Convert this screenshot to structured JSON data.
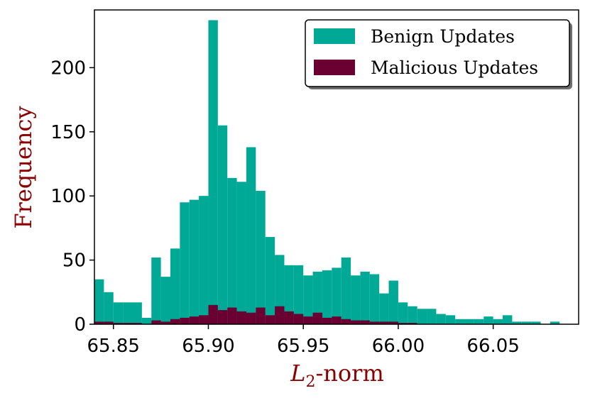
{
  "chart_data": {
    "type": "bar",
    "xlabel_main": "L",
    "xlabel_sub": "2",
    "xlabel_suffix": "-norm",
    "ylabel": "Frequency",
    "xlim": [
      65.84,
      66.095
    ],
    "ylim": [
      0,
      245
    ],
    "x_ticks": [
      65.85,
      65.9,
      65.95,
      66.0,
      66.05
    ],
    "x_tick_labels": [
      "65.85",
      "65.90",
      "65.95",
      "66.00",
      "66.05"
    ],
    "y_ticks": [
      0,
      50,
      100,
      150,
      200
    ],
    "y_tick_labels": [
      "0",
      "50",
      "100",
      "150",
      "200"
    ],
    "bin_width": 0.005,
    "legend_position": "top-right",
    "grid": false,
    "series": [
      {
        "name": "Benign Updates",
        "color": "#00a896",
        "bins": [
          [
            65.8425,
            35
          ],
          [
            65.8475,
            25
          ],
          [
            65.8525,
            17
          ],
          [
            65.8575,
            17
          ],
          [
            65.8625,
            17
          ],
          [
            65.8675,
            5
          ],
          [
            65.8725,
            52
          ],
          [
            65.8775,
            37
          ],
          [
            65.8825,
            59
          ],
          [
            65.8875,
            95
          ],
          [
            65.8925,
            97
          ],
          [
            65.8975,
            100
          ],
          [
            65.9025,
            237
          ],
          [
            65.9075,
            155
          ],
          [
            65.9125,
            114
          ],
          [
            65.9175,
            111
          ],
          [
            65.9225,
            138
          ],
          [
            65.9275,
            104
          ],
          [
            65.9325,
            68
          ],
          [
            65.9375,
            54
          ],
          [
            65.9425,
            46
          ],
          [
            65.9475,
            46
          ],
          [
            65.9525,
            38
          ],
          [
            65.9575,
            41
          ],
          [
            65.9625,
            42
          ],
          [
            65.9675,
            44
          ],
          [
            65.9725,
            52
          ],
          [
            65.9775,
            38
          ],
          [
            65.9825,
            41
          ],
          [
            65.9875,
            39
          ],
          [
            65.9925,
            24
          ],
          [
            65.9975,
            34
          ],
          [
            66.0025,
            17
          ],
          [
            66.0075,
            14
          ],
          [
            66.0125,
            12
          ],
          [
            66.0175,
            12
          ],
          [
            66.0225,
            8
          ],
          [
            66.0275,
            7
          ],
          [
            66.0325,
            4
          ],
          [
            66.0375,
            4
          ],
          [
            66.0425,
            4
          ],
          [
            66.0475,
            6
          ],
          [
            66.0525,
            4
          ],
          [
            66.0575,
            7
          ],
          [
            66.0625,
            2
          ],
          [
            66.0675,
            2
          ],
          [
            66.0725,
            2
          ],
          [
            66.0825,
            2
          ]
        ]
      },
      {
        "name": "Malicious Updates",
        "color": "#6a0032",
        "bins": [
          [
            65.8425,
            2
          ],
          [
            65.8475,
            2
          ],
          [
            65.8525,
            1
          ],
          [
            65.8575,
            1
          ],
          [
            65.8625,
            1
          ],
          [
            65.8725,
            3
          ],
          [
            65.8775,
            2
          ],
          [
            65.8825,
            4
          ],
          [
            65.8875,
            5
          ],
          [
            65.8925,
            6
          ],
          [
            65.8975,
            7
          ],
          [
            65.9025,
            15
          ],
          [
            65.9075,
            11
          ],
          [
            65.9125,
            13
          ],
          [
            65.9175,
            10
          ],
          [
            65.9225,
            9
          ],
          [
            65.9275,
            13
          ],
          [
            65.9325,
            7
          ],
          [
            65.9375,
            14
          ],
          [
            65.9425,
            10
          ],
          [
            65.9475,
            8
          ],
          [
            65.9525,
            6
          ],
          [
            65.9575,
            9
          ],
          [
            65.9625,
            5
          ],
          [
            65.9675,
            6
          ],
          [
            65.9725,
            4
          ],
          [
            65.9775,
            3
          ],
          [
            65.9825,
            3
          ],
          [
            65.9875,
            2
          ],
          [
            65.9925,
            2
          ],
          [
            65.9975,
            2
          ],
          [
            66.0025,
            1
          ],
          [
            66.0075,
            1
          ]
        ]
      }
    ]
  }
}
